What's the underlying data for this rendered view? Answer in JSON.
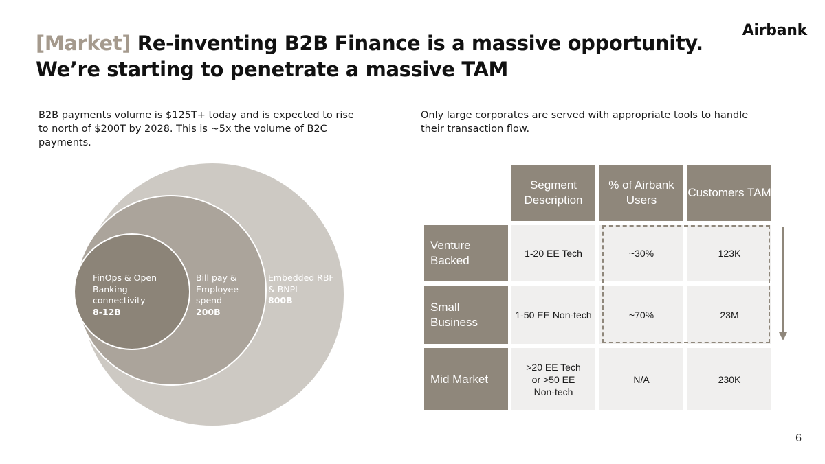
{
  "header": {
    "tag": "[Market]",
    "title_line1": "Re-inventing B2B Finance is a massive opportunity.",
    "title_line2": "We’re starting to penetrate a massive TAM",
    "brand": "Airbank"
  },
  "left": {
    "intro": "B2B payments volume is $125T+ today and is expected to rise to north of $200T by 2028. This is ~5x the volume of B2C payments.",
    "circles": {
      "inner": {
        "label": "FinOps & Open Banking connectivity",
        "value": "8-12B"
      },
      "middle": {
        "label": "Bill pay & Employee spend",
        "value": "200B"
      },
      "outer": {
        "label": "Embedded RBF & BNPL",
        "value": "800B"
      }
    }
  },
  "right": {
    "intro": "Only large corporates are served with appropriate tools to handle their transaction flow.",
    "table": {
      "headers": [
        "Segment Description",
        "% of Airbank Users",
        "Customers TAM"
      ],
      "rows": [
        {
          "name": "Venture Backed",
          "description": "1-20 EE Tech",
          "airbank_users": "~30%",
          "tam": "123K"
        },
        {
          "name": "Small Business",
          "description": "1-50 EE Non-tech",
          "airbank_users": "~70%",
          "tam": "23M"
        },
        {
          "name": "Mid Market",
          "description": ">20 EE Tech or >50 EE Non-tech",
          "airbank_users": "N/A",
          "tam": "230K"
        }
      ]
    }
  },
  "footer": {
    "page_number": "6"
  }
}
